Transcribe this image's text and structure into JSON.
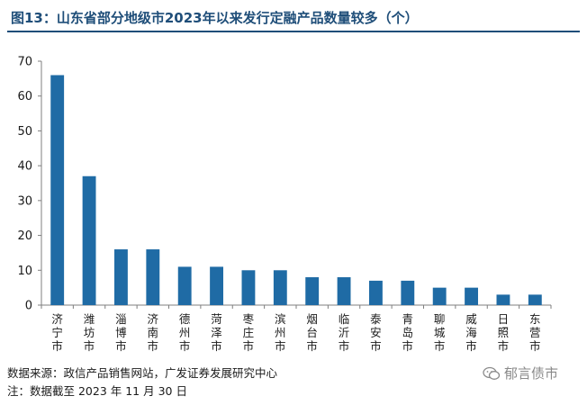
{
  "header": {
    "title": "图13：山东省部分地级市2023年以来发行定融产品数量较多（个）"
  },
  "chart_data": {
    "type": "bar",
    "title": "图13：山东省部分地级市2023年以来发行定融产品数量较多（个）",
    "xlabel": "",
    "ylabel": "",
    "categories": [
      "济宁市",
      "潍坊市",
      "淄博市",
      "济南市",
      "德州市",
      "菏泽市",
      "枣庄市",
      "滨州市",
      "烟台市",
      "临沂市",
      "泰安市",
      "青岛市",
      "聊城市",
      "威海市",
      "日照市",
      "东营市"
    ],
    "values": [
      66,
      37,
      16,
      16,
      11,
      11,
      10,
      10,
      8,
      8,
      7,
      7,
      5,
      5,
      3,
      3
    ],
    "ylim": [
      0,
      70
    ],
    "yticks": [
      0,
      10,
      20,
      30,
      40,
      50,
      60,
      70
    ],
    "grid": false,
    "legend": "none",
    "bar_color": "#1f6ba5"
  },
  "footer": {
    "source": "数据来源：政信产品销售网站，广发证券发展研究中心",
    "note": "注：数据截至 2023 年 11 月 30 日",
    "watermark": "郁言债市",
    "watermark_icon": "wechat-icon"
  }
}
